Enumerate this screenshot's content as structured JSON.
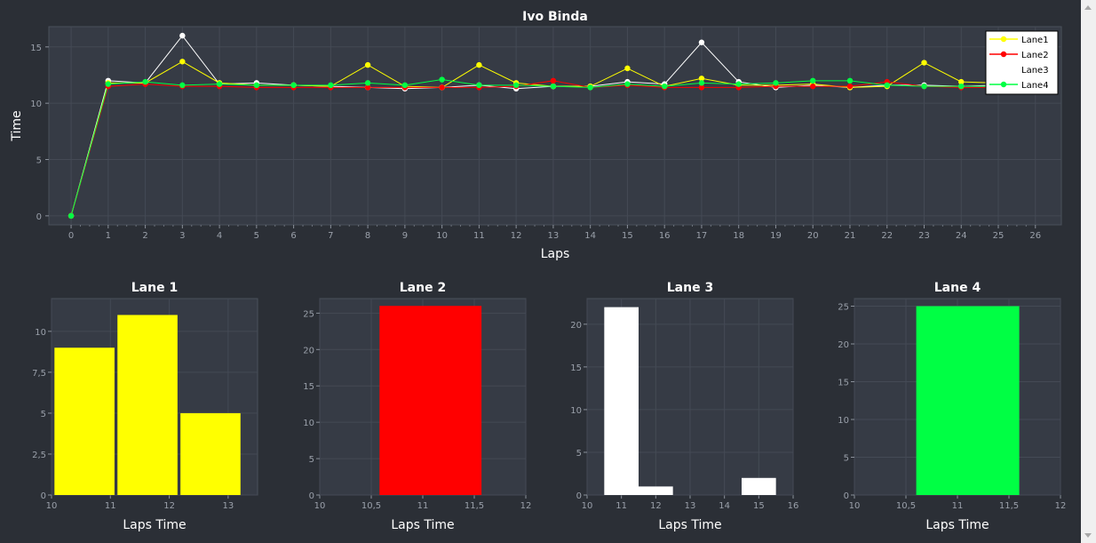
{
  "chart_data": [
    {
      "type": "line",
      "title": "Ivo Binda",
      "xlabel": "Laps",
      "ylabel": "Time",
      "xlim": [
        -0.6,
        26.7
      ],
      "ylim": [
        -0.8,
        16.8
      ],
      "x_ticks": [
        0,
        1,
        2,
        3,
        4,
        5,
        6,
        7,
        8,
        9,
        10,
        11,
        12,
        13,
        14,
        15,
        16,
        17,
        18,
        19,
        20,
        21,
        22,
        23,
        24,
        25,
        26
      ],
      "y_ticks": [
        0,
        5,
        10,
        15
      ],
      "grid": true,
      "legend": "top-right",
      "x": [
        0,
        1,
        2,
        3,
        4,
        5,
        6,
        7,
        8,
        9,
        10,
        11,
        12,
        13,
        14,
        15,
        16,
        17,
        18,
        19,
        20,
        21,
        22,
        23,
        24,
        25
      ],
      "series": [
        {
          "name": "Lane1",
          "color": "#ffff00",
          "values": [
            0,
            11.8,
            11.8,
            13.7,
            11.8,
            11.6,
            11.6,
            11.5,
            13.4,
            11.5,
            11.4,
            13.4,
            11.8,
            11.5,
            11.5,
            13.1,
            11.5,
            12.2,
            11.6,
            11.6,
            11.7,
            11.4,
            11.5,
            13.6,
            11.9,
            11.8
          ]
        },
        {
          "name": "Lane2",
          "color": "#ff0000",
          "values": [
            0,
            11.5,
            11.7,
            11.5,
            11.5,
            11.4,
            11.4,
            11.4,
            11.4,
            11.4,
            11.4,
            11.4,
            11.5,
            12.0,
            11.4,
            11.6,
            11.4,
            11.4,
            11.4,
            11.5,
            11.5,
            11.5,
            11.9,
            11.5,
            11.4,
            11.4
          ]
        },
        {
          "name": "Lane3",
          "color": "#ffffff",
          "values": [
            0,
            12.0,
            11.8,
            16.0,
            11.7,
            11.8,
            11.6,
            11.5,
            11.4,
            11.3,
            11.4,
            11.6,
            11.3,
            11.5,
            11.5,
            11.9,
            11.7,
            15.4,
            11.9,
            11.4,
            11.6,
            11.4,
            11.6,
            11.6,
            11.5,
            11.6
          ]
        },
        {
          "name": "Lane4",
          "color": "#00ff44",
          "values": [
            0,
            11.7,
            11.9,
            11.6,
            11.7,
            11.6,
            11.6,
            11.6,
            11.8,
            11.6,
            12.1,
            11.6,
            11.6,
            11.5,
            11.4,
            11.7,
            11.5,
            11.8,
            11.7,
            11.8,
            12.0,
            12.0,
            11.6,
            11.5,
            11.5,
            11.5
          ]
        }
      ]
    },
    {
      "type": "bar",
      "title": "Lane 1",
      "xlabel": "Laps Time",
      "color": "#ffff00",
      "xlim": [
        10,
        13.5
      ],
      "ylim": [
        0,
        12
      ],
      "x_ticks": [
        10,
        11,
        12,
        13
      ],
      "y_ticks": [
        0,
        2.5,
        5,
        7.5,
        10
      ],
      "x_tick_labels": [
        "10",
        "11",
        "12",
        "13"
      ],
      "y_tick_labels": [
        "0",
        "2,5",
        "5",
        "7,5",
        "10"
      ],
      "bins": [
        {
          "from": 10.05,
          "to": 11.07,
          "value": 9
        },
        {
          "from": 11.12,
          "to": 12.14,
          "value": 11
        },
        {
          "from": 12.19,
          "to": 13.21,
          "value": 5
        }
      ]
    },
    {
      "type": "bar",
      "title": "Lane 2",
      "xlabel": "Laps Time",
      "color": "#ff0000",
      "xlim": [
        10,
        12
      ],
      "ylim": [
        0,
        27
      ],
      "x_ticks": [
        10,
        10.5,
        11,
        11.5,
        12
      ],
      "y_ticks": [
        0,
        5,
        10,
        15,
        20,
        25
      ],
      "x_tick_labels": [
        "10",
        "10,5",
        "11",
        "11,5",
        "12"
      ],
      "y_tick_labels": [
        "0",
        "5",
        "10",
        "15",
        "20",
        "25"
      ],
      "bins": [
        {
          "from": 10.58,
          "to": 11.57,
          "value": 26
        }
      ]
    },
    {
      "type": "bar",
      "title": "Lane 3",
      "xlabel": "Laps Time",
      "color": "#ffffff",
      "xlim": [
        10,
        16
      ],
      "ylim": [
        0,
        23
      ],
      "x_ticks": [
        10,
        11,
        12,
        13,
        14,
        15,
        16
      ],
      "y_ticks": [
        0,
        5,
        10,
        15,
        20
      ],
      "x_tick_labels": [
        "10",
        "11",
        "12",
        "13",
        "14",
        "15",
        "16"
      ],
      "y_tick_labels": [
        "0",
        "5",
        "10",
        "15",
        "20"
      ],
      "bins": [
        {
          "from": 10.5,
          "to": 11.5,
          "value": 22
        },
        {
          "from": 11.5,
          "to": 12.5,
          "value": 1
        },
        {
          "from": 14.5,
          "to": 15.5,
          "value": 2
        }
      ]
    },
    {
      "type": "bar",
      "title": "Lane 4",
      "xlabel": "Laps Time",
      "color": "#00ff44",
      "xlim": [
        10,
        12
      ],
      "ylim": [
        0,
        26
      ],
      "x_ticks": [
        10,
        10.5,
        11,
        11.5,
        12
      ],
      "y_ticks": [
        0,
        5,
        10,
        15,
        20,
        25
      ],
      "x_tick_labels": [
        "10",
        "10,5",
        "11",
        "11,5",
        "12"
      ],
      "y_tick_labels": [
        "0",
        "5",
        "10",
        "15",
        "20",
        "25"
      ],
      "bins": [
        {
          "from": 10.6,
          "to": 11.6,
          "value": 25
        }
      ]
    }
  ],
  "colors": {
    "background": "#2b2f36",
    "plot_area": "#363b45",
    "grid": "#444a55",
    "text": "#ffffff",
    "tick_text": "#9aa0aa"
  }
}
